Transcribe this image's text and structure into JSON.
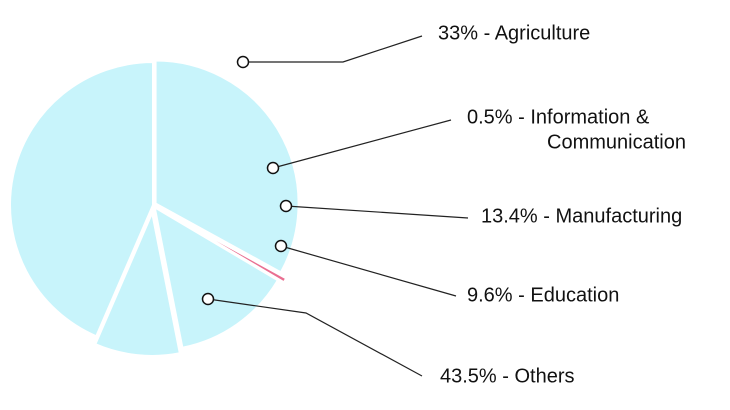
{
  "chart_data": {
    "type": "pie",
    "title": "",
    "slices": [
      {
        "label_line1": "33% - Agriculture",
        "label_line2": "",
        "value": 33,
        "color": "#c8f4fb"
      },
      {
        "label_line1": "0.5% -  Information &",
        "label_line2": "Communication",
        "value": 0.5,
        "color": "#e96f91"
      },
      {
        "label_line1": "13.4% - Manufacturing",
        "label_line2": "",
        "value": 13.4,
        "color": "#c8f4fb"
      },
      {
        "label_line1": "9.6% - Education",
        "label_line2": "",
        "value": 9.6,
        "color": "#c8f4fb"
      },
      {
        "label_line1": "43.5% - Others",
        "label_line2": "",
        "value": 43.5,
        "color": "#c8f4fb"
      }
    ]
  }
}
